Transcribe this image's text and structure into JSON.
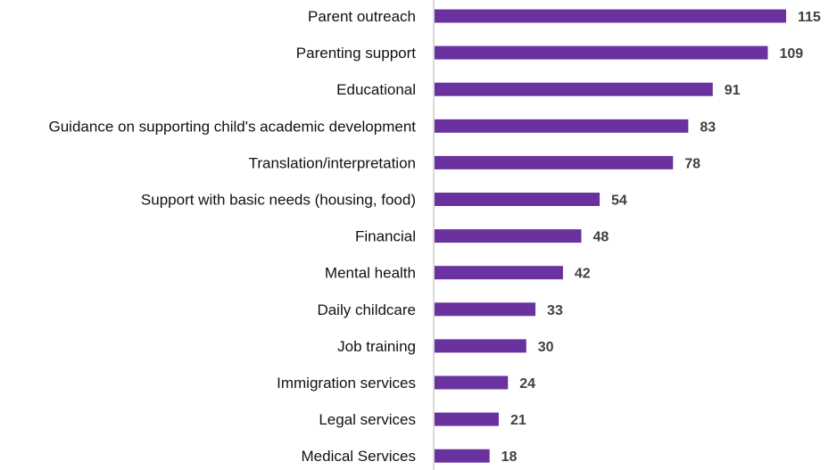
{
  "colors": {
    "bar": "#6a329f",
    "axis": "#d9d9d9",
    "label": "#111111",
    "value": "#404040"
  },
  "chart_data": {
    "type": "bar",
    "orientation": "horizontal",
    "title": "",
    "xlabel": "",
    "ylabel": "",
    "xlim": [
      0,
      115
    ],
    "grid": false,
    "legend": "none",
    "categories": [
      "Parent outreach",
      "Parenting support",
      "Educational",
      "Guidance on supporting child's academic development",
      "Translation/interpretation",
      "Support with basic needs (housing, food)",
      "Financial",
      "Mental health",
      "Daily childcare",
      "Job training",
      "Immigration services",
      "Legal services",
      "Medical Services"
    ],
    "values": [
      115,
      109,
      91,
      83,
      78,
      54,
      48,
      42,
      33,
      30,
      24,
      21,
      18
    ],
    "data_labels": [
      "115",
      "109",
      "91",
      "83",
      "78",
      "54",
      "48",
      "42",
      "33",
      "30",
      "24",
      "21",
      "18"
    ]
  }
}
